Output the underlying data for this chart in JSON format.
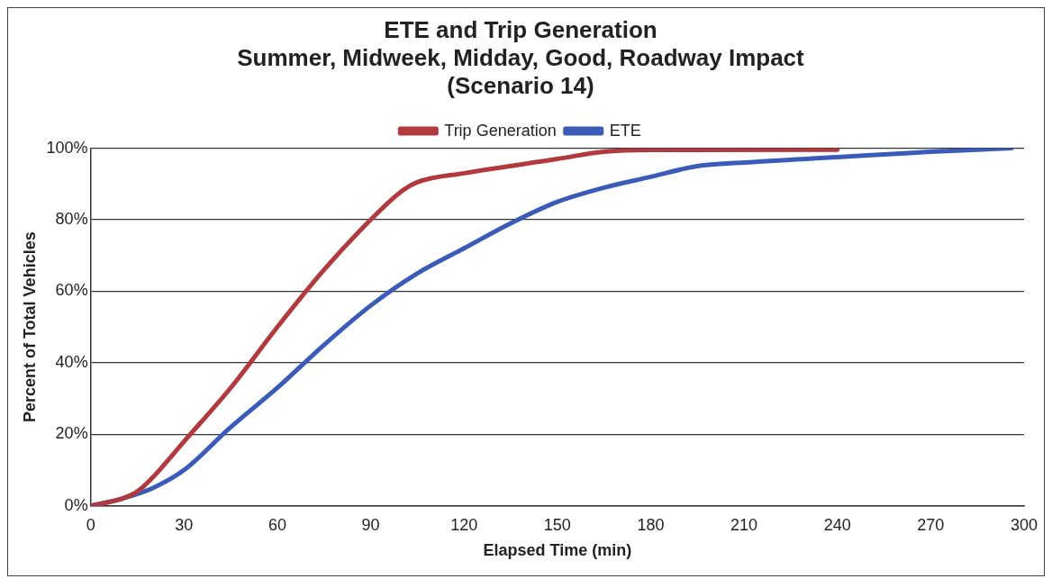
{
  "chart_data": {
    "type": "line",
    "title": [
      "ETE and Trip Generation",
      "Summer, Midweek, Midday, Good, Roadway Impact",
      "(Scenario 14)"
    ],
    "xlabel": "Elapsed Time (min)",
    "ylabel": "Percent of Total Vehicles",
    "xlim": [
      0,
      300
    ],
    "xticks": [
      0,
      30,
      60,
      90,
      120,
      150,
      180,
      210,
      240,
      270,
      300
    ],
    "ylim": [
      0,
      100
    ],
    "yticks": [
      {
        "value": 0,
        "label": "0%"
      },
      {
        "value": 20,
        "label": "20%"
      },
      {
        "value": 40,
        "label": "40%"
      },
      {
        "value": 60,
        "label": "60%"
      },
      {
        "value": 80,
        "label": "80%"
      },
      {
        "value": 100,
        "label": "100%"
      }
    ],
    "grid": "y",
    "legend": "top",
    "marker": "none",
    "line_style": "solid",
    "series": [
      {
        "name": "Trip Generation",
        "color": "#b03a3e",
        "x": [
          0,
          10,
          15,
          20,
          30,
          45,
          60,
          75,
          90,
          100,
          105,
          120,
          150,
          165,
          180,
          240
        ],
        "values": [
          0,
          2,
          4,
          8,
          18,
          33,
          50,
          66,
          80,
          88,
          90.5,
          93,
          97,
          99,
          99.5,
          99.6
        ]
      },
      {
        "name": "ETE",
        "color": "#3a5bb8",
        "x": [
          0,
          10,
          20,
          30,
          45,
          60,
          75,
          90,
          105,
          120,
          135,
          150,
          165,
          180,
          195,
          210,
          240,
          270,
          296
        ],
        "values": [
          0,
          2,
          5,
          10,
          22,
          33,
          45,
          56,
          65,
          72,
          79,
          85,
          89,
          92,
          95,
          96,
          97.5,
          99,
          100
        ]
      }
    ]
  }
}
